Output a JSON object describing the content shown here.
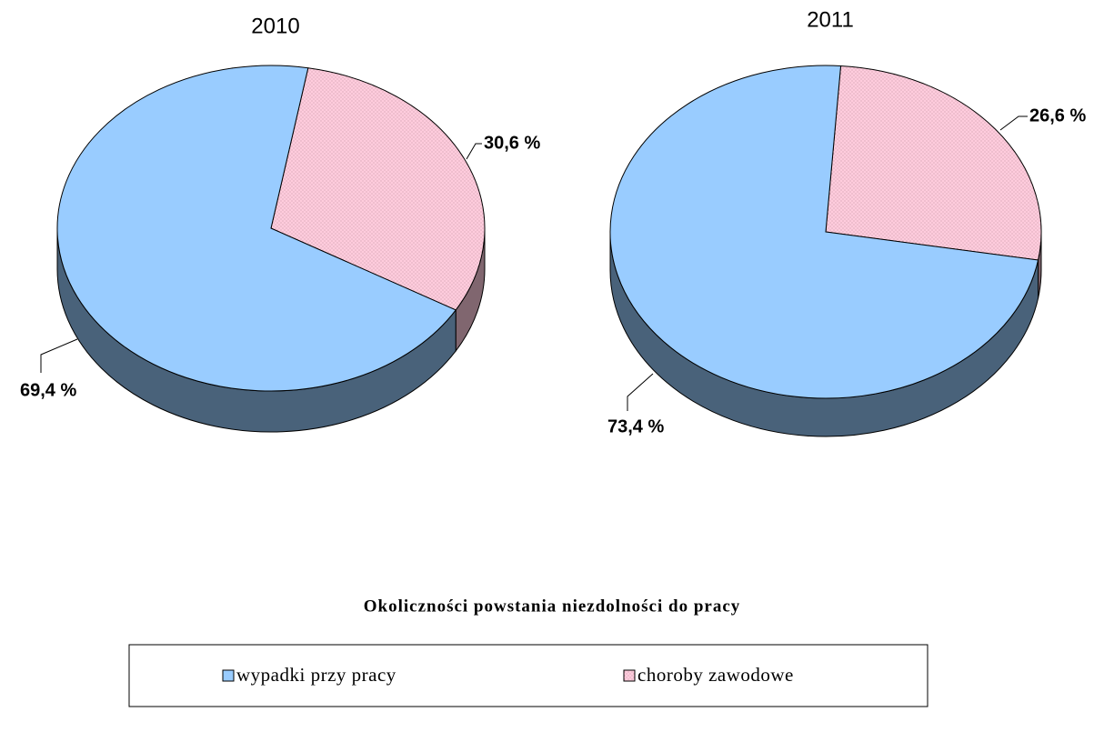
{
  "chart_data": [
    {
      "type": "pie3d",
      "title": "2010",
      "categories": [
        "wypadki przy pracy",
        "choroby zawodowe"
      ],
      "values": [
        69.4,
        30.6
      ],
      "value_labels": [
        "69,4 %",
        "30,6 %"
      ],
      "colors": [
        "#99ccff",
        "#ffccdd"
      ]
    },
    {
      "type": "pie3d",
      "title": "2011",
      "categories": [
        "wypadki przy pracy",
        "choroby zawodowe"
      ],
      "values": [
        73.4,
        26.6
      ],
      "value_labels": [
        "73,4 %",
        "26,6 %"
      ],
      "colors": [
        "#99ccff",
        "#ffccdd"
      ]
    }
  ],
  "legend_title": "Okoliczności powstania niezdolności do pracy"
}
